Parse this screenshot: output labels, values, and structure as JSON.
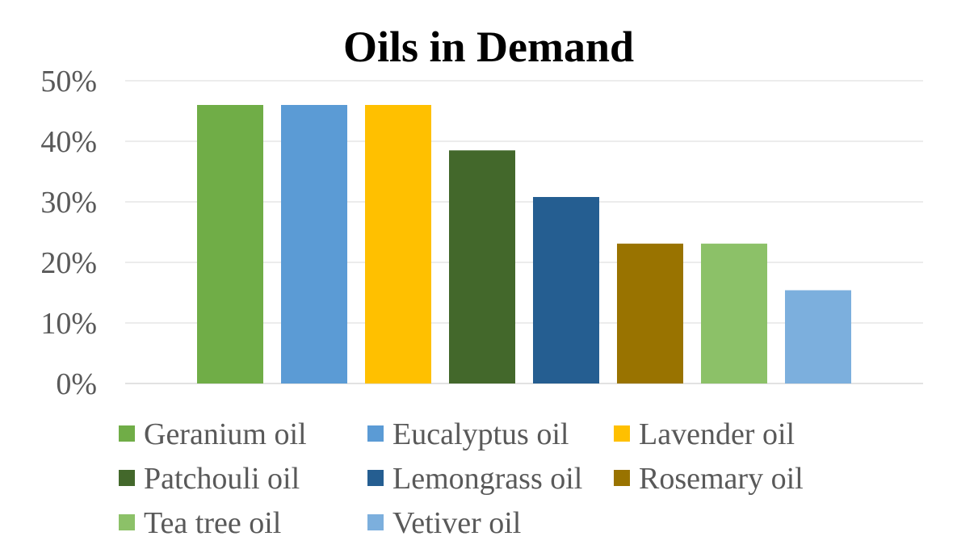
{
  "chart_data": {
    "type": "bar",
    "title": "Oils in Demand",
    "xlabel": "",
    "ylabel": "",
    "ylim": [
      0,
      50
    ],
    "yticks": [
      "0%",
      "10%",
      "20%",
      "30%",
      "40%",
      "50%"
    ],
    "ytick_values": [
      0,
      10,
      20,
      30,
      40,
      50
    ],
    "grid": true,
    "legend_position": "bottom",
    "series": [
      {
        "name": "Geranium oil",
        "value": 46,
        "color": "#70ad47"
      },
      {
        "name": "Eucalyptus oil",
        "value": 46,
        "color": "#5b9bd5"
      },
      {
        "name": "Lavender oil",
        "value": 46,
        "color": "#ffc000"
      },
      {
        "name": "Patchouli oil",
        "value": 38.5,
        "color": "#43682b"
      },
      {
        "name": "Lemongrass oil",
        "value": 30.8,
        "color": "#255e91"
      },
      {
        "name": "Rosemary oil",
        "value": 23.1,
        "color": "#997300"
      },
      {
        "name": "Tea tree oil",
        "value": 23.1,
        "color": "#8cc168"
      },
      {
        "name": "Vetiver oil",
        "value": 15.4,
        "color": "#7cafdd"
      }
    ]
  }
}
